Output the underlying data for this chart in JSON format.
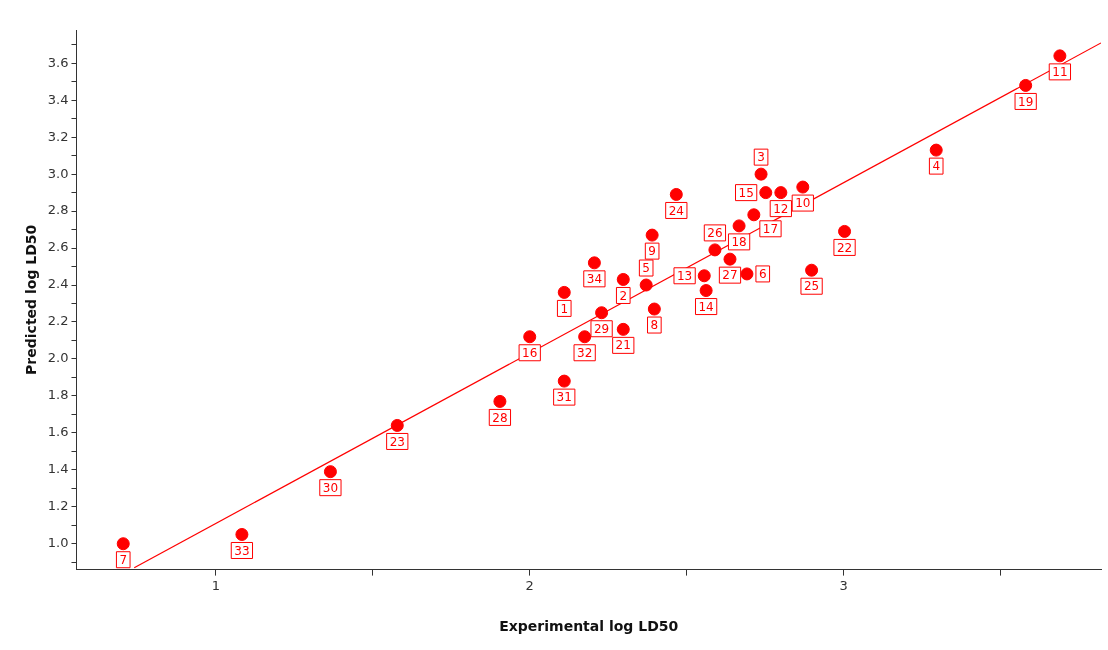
{
  "chart_data": {
    "type": "scatter",
    "xlabel": "Experimental log LD50",
    "ylabel": "Predicted log LD50",
    "marker": "circle",
    "grid": false,
    "legend": false,
    "xlim": [
      0.556,
      3.82
    ],
    "ylim": [
      0.86,
      3.78
    ],
    "xticks": [
      1,
      {
        "value": 1.5,
        "label": null
      },
      2,
      {
        "value": 2.5,
        "label": null
      },
      3,
      {
        "value": 3.5,
        "label": null
      }
    ],
    "yticks": [
      {
        "value": 0.9,
        "label": null
      },
      {
        "value": 1,
        "label": "1.0"
      },
      {
        "value": 1.1,
        "label": null
      },
      {
        "value": 1.2,
        "label": "1.2"
      },
      {
        "value": 1.3,
        "label": null
      },
      {
        "value": 1.4,
        "label": "1.4"
      },
      {
        "value": 1.5,
        "label": null
      },
      {
        "value": 1.6,
        "label": "1.6"
      },
      {
        "value": 1.7,
        "label": null
      },
      {
        "value": 1.8,
        "label": "1.8"
      },
      {
        "value": 1.9,
        "label": null
      },
      {
        "value": 2,
        "label": "2.0"
      },
      {
        "value": 2.1,
        "label": null
      },
      {
        "value": 2.2,
        "label": "2.2"
      },
      {
        "value": 2.3,
        "label": null
      },
      {
        "value": 2.4,
        "label": "2.4"
      },
      {
        "value": 2.5,
        "label": null
      },
      {
        "value": 2.6,
        "label": "2.6"
      },
      {
        "value": 2.7,
        "label": null
      },
      {
        "value": 2.8,
        "label": "2.8"
      },
      {
        "value": 2.9,
        "label": null
      },
      {
        "value": 3,
        "label": "3.0"
      },
      {
        "value": 3.1,
        "label": null
      },
      {
        "value": 3.2,
        "label": "3.2"
      },
      {
        "value": 3.3,
        "label": null
      },
      {
        "value": 3.4,
        "label": "3.4"
      },
      {
        "value": 3.5,
        "label": null
      },
      {
        "value": 3.6,
        "label": "3.6"
      },
      {
        "value": 3.7,
        "label": null
      }
    ],
    "series": [
      {
        "color": "#ff0000",
        "x": [
          0.705,
          1.083,
          1.365,
          1.578,
          1.905,
          2.0,
          2.11,
          2.11,
          2.175,
          2.206,
          2.229,
          2.298,
          2.298,
          2.397,
          2.371,
          2.39,
          2.467,
          2.737,
          2.752,
          2.8,
          2.87,
          2.714,
          2.667,
          2.59,
          2.638,
          2.692,
          2.556,
          2.562,
          3.003,
          2.898,
          3.295,
          3.58,
          3.689
        ],
        "values": [
          1.0,
          1.05,
          1.39,
          1.64,
          1.77,
          2.12,
          1.88,
          2.36,
          2.12,
          2.52,
          2.25,
          2.43,
          2.16,
          2.27,
          2.4,
          2.67,
          2.89,
          3.0,
          2.9,
          2.9,
          2.93,
          2.78,
          2.72,
          2.59,
          2.54,
          2.46,
          2.45,
          2.37,
          2.69,
          2.48,
          3.13,
          3.48,
          3.64
        ]
      },
      {
        "type": "line",
        "marker": "none",
        "color": "#ff0000",
        "x": [
          0.74,
          3.82
        ],
        "values": [
          0.87,
          3.71
        ]
      }
    ],
    "annotations": [
      {
        "text": "7",
        "x": 0.705,
        "y": 1.0
      },
      {
        "text": "33",
        "x": 1.083,
        "y": 1.05
      },
      {
        "text": "30",
        "x": 1.365,
        "y": 1.39
      },
      {
        "text": "23",
        "x": 1.578,
        "y": 1.64
      },
      {
        "text": "28",
        "x": 1.905,
        "y": 1.77
      },
      {
        "text": "16",
        "x": 2.0,
        "y": 2.12
      },
      {
        "text": "31",
        "x": 2.11,
        "y": 1.88
      },
      {
        "text": "1",
        "x": 2.11,
        "y": 2.36
      },
      {
        "text": "32",
        "x": 2.175,
        "y": 2.12
      },
      {
        "text": "34",
        "x": 2.206,
        "y": 2.52
      },
      {
        "text": "29",
        "x": 2.229,
        "y": 2.25
      },
      {
        "text": "2",
        "x": 2.298,
        "y": 2.43
      },
      {
        "text": "21",
        "x": 2.298,
        "y": 2.16
      },
      {
        "text": "8",
        "x": 2.397,
        "y": 2.27
      },
      {
        "text": "5",
        "x": 2.371,
        "y": 2.4
      },
      {
        "text": "9",
        "x": 2.39,
        "y": 2.67
      },
      {
        "text": "24",
        "x": 2.467,
        "y": 2.89
      },
      {
        "text": "3",
        "x": 2.737,
        "y": 3.0
      },
      {
        "text": "15",
        "x": 2.752,
        "y": 2.9
      },
      {
        "text": "12",
        "x": 2.8,
        "y": 2.9
      },
      {
        "text": "10",
        "x": 2.87,
        "y": 2.93
      },
      {
        "text": "17",
        "x": 2.714,
        "y": 2.78
      },
      {
        "text": "18",
        "x": 2.667,
        "y": 2.72
      },
      {
        "text": "26",
        "x": 2.59,
        "y": 2.59
      },
      {
        "text": "27",
        "x": 2.638,
        "y": 2.54
      },
      {
        "text": "6",
        "x": 2.692,
        "y": 2.46
      },
      {
        "text": "13",
        "x": 2.556,
        "y": 2.45
      },
      {
        "text": "14",
        "x": 2.562,
        "y": 2.37
      },
      {
        "text": "22",
        "x": 3.003,
        "y": 2.69
      },
      {
        "text": "25",
        "x": 2.898,
        "y": 2.48
      },
      {
        "text": "4",
        "x": 3.295,
        "y": 3.13
      },
      {
        "text": "19",
        "x": 3.58,
        "y": 3.48
      },
      {
        "text": "11",
        "x": 3.689,
        "y": 3.64
      }
    ]
  }
}
